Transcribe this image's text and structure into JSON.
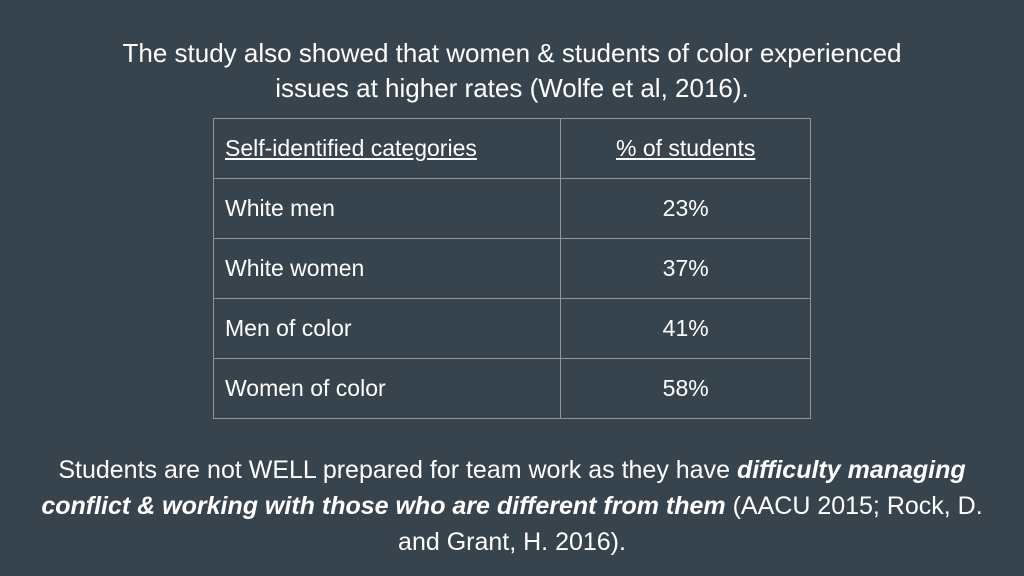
{
  "heading": {
    "line1": "The study also showed that women & students of color experienced",
    "line2": "issues at higher rates (Wolfe et al, 2016)."
  },
  "table": {
    "headers": [
      "Self-identified categories",
      "% of students"
    ],
    "rows": [
      [
        "White men",
        "23%"
      ],
      [
        "White women",
        "37%"
      ],
      [
        "Men of color",
        "41%"
      ],
      [
        "Women of color",
        "58%"
      ]
    ]
  },
  "footer": {
    "part1": "Students are not WELL prepared for team work as they have ",
    "emphasis": "difficulty managing conflict & working with those who are different from them",
    "part2": " (AACU 2015; Rock, D. and Grant, H. 2016)."
  },
  "colors": {
    "background": "#37444d",
    "text": "#ffffff",
    "table_border": "#8f979c"
  }
}
